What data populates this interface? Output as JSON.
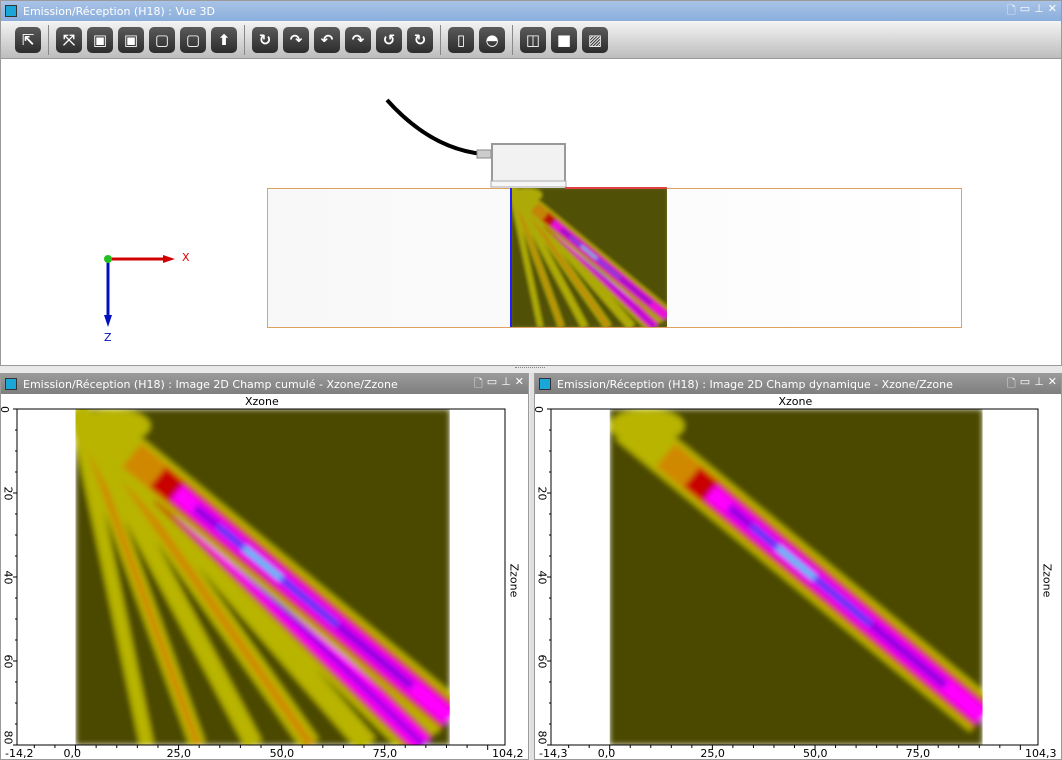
{
  "top_window": {
    "title": "Emission/Réception (H18) : Vue 3D",
    "controls": [
      "🗋",
      "▭",
      "⊥",
      "✕"
    ],
    "toolbar": [
      {
        "name": "select-tool",
        "glyph": "⇱"
      },
      "sep",
      {
        "name": "fit-view",
        "glyph": "⤧"
      },
      {
        "name": "view-solid",
        "glyph": "▣"
      },
      {
        "name": "view-solid-front",
        "glyph": "▣"
      },
      {
        "name": "view-wireframe",
        "glyph": "▢"
      },
      {
        "name": "view-wireframe-alt",
        "glyph": "▢"
      },
      {
        "name": "view-top",
        "glyph": "⬆"
      },
      "sep",
      {
        "name": "rotate-up",
        "glyph": "↻"
      },
      {
        "name": "rotate-down",
        "glyph": "↷"
      },
      {
        "name": "rotate-left",
        "glyph": "↶"
      },
      {
        "name": "rotate-right",
        "glyph": "↷"
      },
      {
        "name": "rotate-ccw",
        "glyph": "↺"
      },
      {
        "name": "rotate-cw",
        "glyph": "↻"
      },
      "sep",
      {
        "name": "ruler",
        "glyph": "▯"
      },
      {
        "name": "protractor",
        "glyph": "◓"
      },
      "sep",
      {
        "name": "box-outline",
        "glyph": "◫"
      },
      {
        "name": "box-solid",
        "glyph": "■"
      },
      {
        "name": "hatch",
        "glyph": "▨"
      }
    ],
    "axes": {
      "x": "X",
      "z": "Z"
    }
  },
  "left_window": {
    "title": "Emission/Réception (H18) : Image 2D Champ cumulé - Xzone/Zzone",
    "controls": [
      "🗋",
      "▭",
      "⊥",
      "✕"
    ],
    "xlabel": "Xzone",
    "ylabel": "Zzone",
    "xticks": [
      "-14,2",
      "0,0",
      "25,0",
      "50,0",
      "75,0",
      "104,2"
    ],
    "yticks": [
      "0",
      "20",
      "40",
      "60",
      "80"
    ],
    "xrange": [
      -14.2,
      104.2
    ],
    "yrange": [
      0,
      80
    ]
  },
  "right_window": {
    "title": "Emission/Réception (H18) : Image 2D Champ dynamique - Xzone/Zzone",
    "controls": [
      "🗋",
      "▭",
      "⊥",
      "✕"
    ],
    "xlabel": "Xzone",
    "ylabel": "Zzone",
    "xticks": [
      "-14,3",
      "0,0",
      "25,0",
      "50,0",
      "75,0",
      "104,3"
    ],
    "yticks": [
      "0",
      "20",
      "40",
      "60",
      "80"
    ],
    "xrange": [
      -14.3,
      104.3
    ],
    "yrange": [
      0,
      80
    ]
  },
  "colors": {
    "background": "#4b4a00",
    "yellow": "#b8b400",
    "orange": "#d08800",
    "red": "#c80000",
    "magenta": "#ff00ff",
    "purple": "#9000e0",
    "blue": "#3040ff",
    "cyan": "#00e8ff",
    "block_border": "#e0a060"
  }
}
